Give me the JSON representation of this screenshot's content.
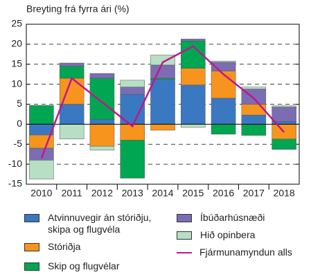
{
  "chart_data": {
    "type": "bar",
    "stacked": true,
    "title": "Breyting frá fyrra ári (%)",
    "categories": [
      "2010",
      "2011",
      "2012",
      "2013",
      "2014",
      "2015",
      "2016",
      "2017",
      "2018"
    ],
    "series": [
      {
        "name": "Atvinnuvegir án stóriðju, skipa og flugvéla",
        "color": "#3a78c2",
        "values": [
          -2.7,
          5,
          1.2,
          7.5,
          11.2,
          9.8,
          6.5,
          2.3,
          0.7
        ]
      },
      {
        "name": "Stóriðja",
        "color": "#f7941d",
        "values": [
          -3.3,
          6.5,
          -5.5,
          -4,
          -1.5,
          4.2,
          6.8,
          2.7,
          -3.7
        ]
      },
      {
        "name": "Skip og flugvélar",
        "color": "#00a651",
        "values": [
          4.7,
          3,
          10.3,
          -9.5,
          0.3,
          6.8,
          -2.5,
          -2.8,
          -2.6
        ]
      },
      {
        "name": "Íbúðarhúsnæði",
        "color": "#7b6db3",
        "values": [
          -3,
          0.8,
          1.2,
          1.8,
          3.3,
          0.5,
          2.2,
          3.8,
          3.6
        ]
      },
      {
        "name": "Hið opinbera",
        "color": "#b7dfc3",
        "values": [
          -4.7,
          -3.7,
          -1,
          1.7,
          2.5,
          -0.8,
          0.3,
          0.5,
          0.3
        ]
      },
      {
        "name": "Fjármunamyndun alls",
        "color": "#c0168d",
        "type": "line",
        "values": [
          -8.5,
          11.5,
          5.5,
          -0.5,
          15.5,
          19.5,
          12.5,
          6.5,
          -2
        ]
      }
    ],
    "ylim": [
      -15,
      25
    ],
    "yticks": [
      -15,
      -10,
      -5,
      0,
      5,
      10,
      15,
      20,
      25
    ],
    "grid": true
  }
}
